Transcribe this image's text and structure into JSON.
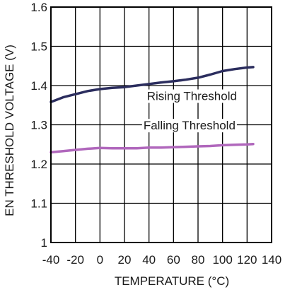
{
  "chart_data": {
    "type": "line",
    "title": "",
    "xlabel": "TEMPERATURE (°C)",
    "ylabel": "EN THRESHOLD VOLTAGE (V)",
    "xlim": [
      -40,
      140
    ],
    "ylim": [
      1.0,
      1.6
    ],
    "x_ticks": [
      -40,
      -20,
      0,
      20,
      40,
      60,
      80,
      100,
      120,
      140
    ],
    "x_tick_labels": [
      "-40",
      "-20",
      "0",
      "20",
      "40",
      "60",
      "80",
      "100",
      "120",
      "140"
    ],
    "y_ticks": [
      1.0,
      1.1,
      1.2,
      1.3,
      1.4,
      1.5,
      1.6
    ],
    "y_tick_labels": [
      "1",
      "1.1",
      "1.2",
      "1.3",
      "1.4",
      "1.5",
      "1.6"
    ],
    "grid": true,
    "series": [
      {
        "name": "Rising Threshold",
        "color": "#2b2d5e",
        "x": [
          -40,
          -30,
          -20,
          -10,
          0,
          10,
          20,
          30,
          40,
          50,
          60,
          70,
          80,
          90,
          100,
          110,
          120,
          125
        ],
        "y": [
          1.358,
          1.37,
          1.378,
          1.386,
          1.391,
          1.394,
          1.396,
          1.4,
          1.404,
          1.408,
          1.411,
          1.415,
          1.42,
          1.428,
          1.437,
          1.442,
          1.446,
          1.447
        ]
      },
      {
        "name": "Falling Threshold",
        "color": "#b067bc",
        "x": [
          -40,
          -30,
          -20,
          -10,
          0,
          10,
          20,
          30,
          40,
          50,
          60,
          70,
          80,
          90,
          100,
          110,
          120,
          125
        ],
        "y": [
          1.23,
          1.233,
          1.236,
          1.239,
          1.241,
          1.24,
          1.24,
          1.24,
          1.242,
          1.242,
          1.243,
          1.244,
          1.245,
          1.246,
          1.248,
          1.249,
          1.25,
          1.251
        ]
      }
    ],
    "annotations": [
      {
        "text": "Rising Threshold",
        "x": 75,
        "y": 1.363
      },
      {
        "text": "Falling Threshold",
        "x": 73,
        "y": 1.288
      }
    ]
  }
}
